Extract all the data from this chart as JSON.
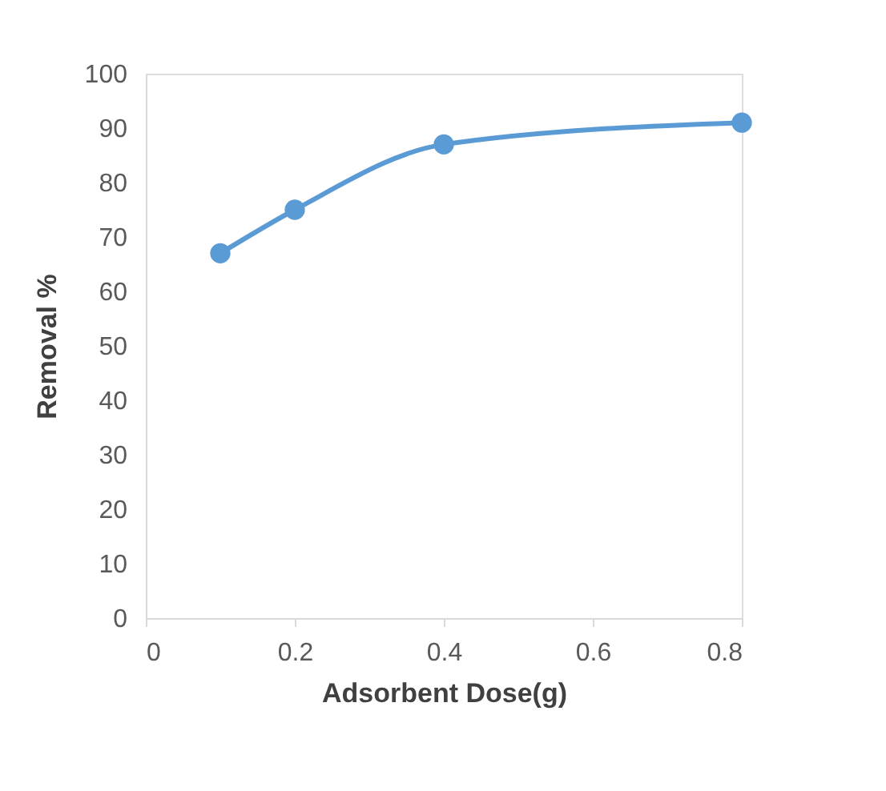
{
  "chart_data": {
    "type": "line",
    "xlabel": "Adsorbent Dose(g)",
    "ylabel": "Removal %",
    "x": [
      0.1,
      0.2,
      0.4,
      0.8
    ],
    "series": [
      {
        "color": "#5b9bd5",
        "values": [
          67,
          75,
          87,
          91
        ]
      }
    ],
    "xlim": [
      0,
      0.8
    ],
    "xticks": [
      0,
      0.2,
      0.4,
      0.6,
      0.8
    ],
    "ylim": [
      0,
      100
    ],
    "yticks": [
      0,
      10,
      20,
      30,
      40,
      50,
      60,
      70,
      80,
      90,
      100
    ],
    "grid": false,
    "marker": "circle",
    "line_style": "solid"
  }
}
